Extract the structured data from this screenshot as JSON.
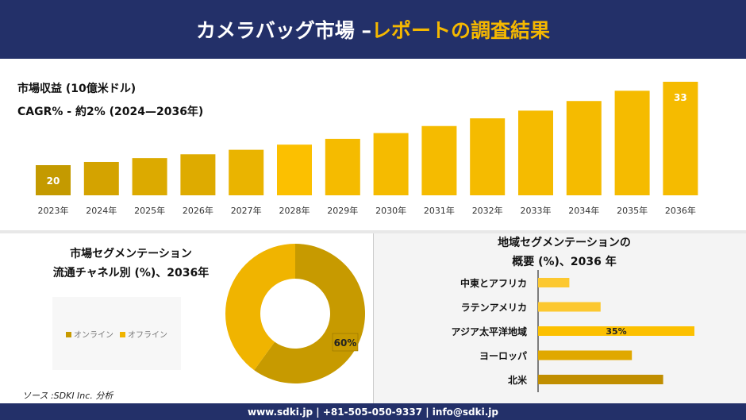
{
  "header": {
    "title_main": "カメラバッグ市場 –",
    "title_accent": "レポートの調査結果"
  },
  "revenue": {
    "label": "市場収益 (10億米ドル)",
    "cagr": "CAGR% - 約2% (2024—2036年)"
  },
  "chart_data": [
    {
      "type": "bar",
      "categories": [
        "2023年",
        "2024年",
        "2025年",
        "2026年",
        "2027年",
        "2028年",
        "2029年",
        "2030年",
        "2031年",
        "2032年",
        "2033年",
        "2034年",
        "2035年",
        "2036年"
      ],
      "values": [
        20,
        20.5,
        21.1,
        21.7,
        22.4,
        23.2,
        24.1,
        25.0,
        26.1,
        27.3,
        28.5,
        30.0,
        31.6,
        33
      ],
      "data_labels": {
        "0": "20",
        "13": "33"
      },
      "colors": [
        "#c49a00",
        "#d4a300",
        "#dcaa00",
        "#deab00",
        "#eab400",
        "#fcc000",
        "#f5bb00",
        "#f5bb00",
        "#f5bb00",
        "#f5bb00",
        "#f5bb00",
        "#f5bb00",
        "#f5bb00",
        "#f5bb00"
      ]
    },
    {
      "type": "pie",
      "title": "市場セグメンテーション\n流通チャネル別 (%)、2036年",
      "labels": [
        "オンライン",
        "オフライン"
      ],
      "values": [
        60,
        40
      ],
      "colors": [
        "#c79a00",
        "#f0b400"
      ],
      "data_labels": [
        "60%",
        ""
      ]
    },
    {
      "type": "bar",
      "orientation": "horizontal",
      "title": "地域セグメンテーションの\n概要 (%)、2036 年",
      "categories": [
        "中東とアフリカ",
        "ラテンアメリカ",
        "アジア太平洋地域",
        "ヨーロッパ",
        "北米"
      ],
      "values": [
        7,
        14,
        35,
        21,
        28
      ],
      "data_labels": [
        "",
        "",
        "35%",
        "",
        ""
      ],
      "colors": [
        "#fcc830",
        "#fcc830",
        "#fcc000",
        "#e0a800",
        "#c08e00"
      ]
    }
  ],
  "segment": {
    "title1": "市場セグメンテーション",
    "title2": "流通チャネル別 (%)、2036年"
  },
  "region": {
    "title1": "地域セグメンテーションの",
    "title2": "概要 (%)、2036 年"
  },
  "source": "ソース :SDKI Inc. 分析",
  "footer": "www.sdki.jp | +81-505-050-9337 | info@sdki.jp"
}
